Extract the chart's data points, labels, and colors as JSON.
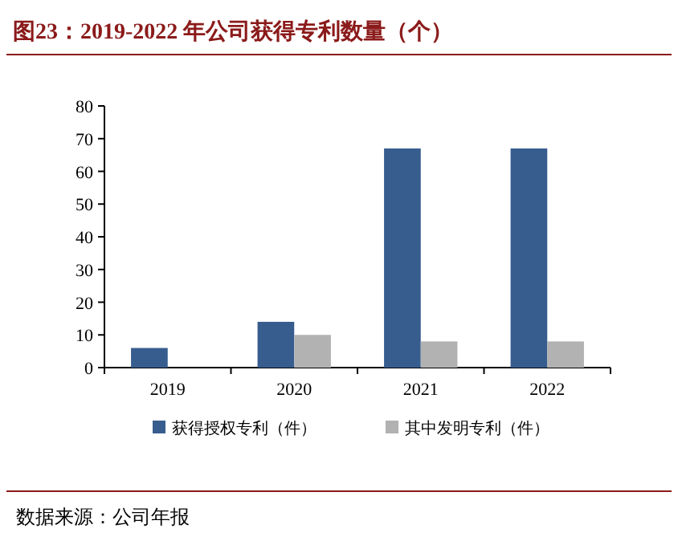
{
  "chart_data": {
    "type": "bar",
    "title": "图23：2019-2022 年公司获得专利数量（个）",
    "categories": [
      "2019",
      "2020",
      "2021",
      "2022"
    ],
    "series": [
      {
        "name": "获得授权专利（件）",
        "color": "#375d8f",
        "values": [
          6,
          14,
          67,
          67
        ]
      },
      {
        "name": "其中发明专利（件）",
        "color": "#b2b2b2",
        "values": [
          0,
          10,
          8,
          8
        ]
      }
    ],
    "ylim": [
      0,
      80
    ],
    "yticks": [
      0,
      10,
      20,
      30,
      40,
      50,
      60,
      70,
      80
    ],
    "grid": false,
    "legend": "bottom",
    "annotations": [
      "数据来源：公司年报"
    ]
  }
}
